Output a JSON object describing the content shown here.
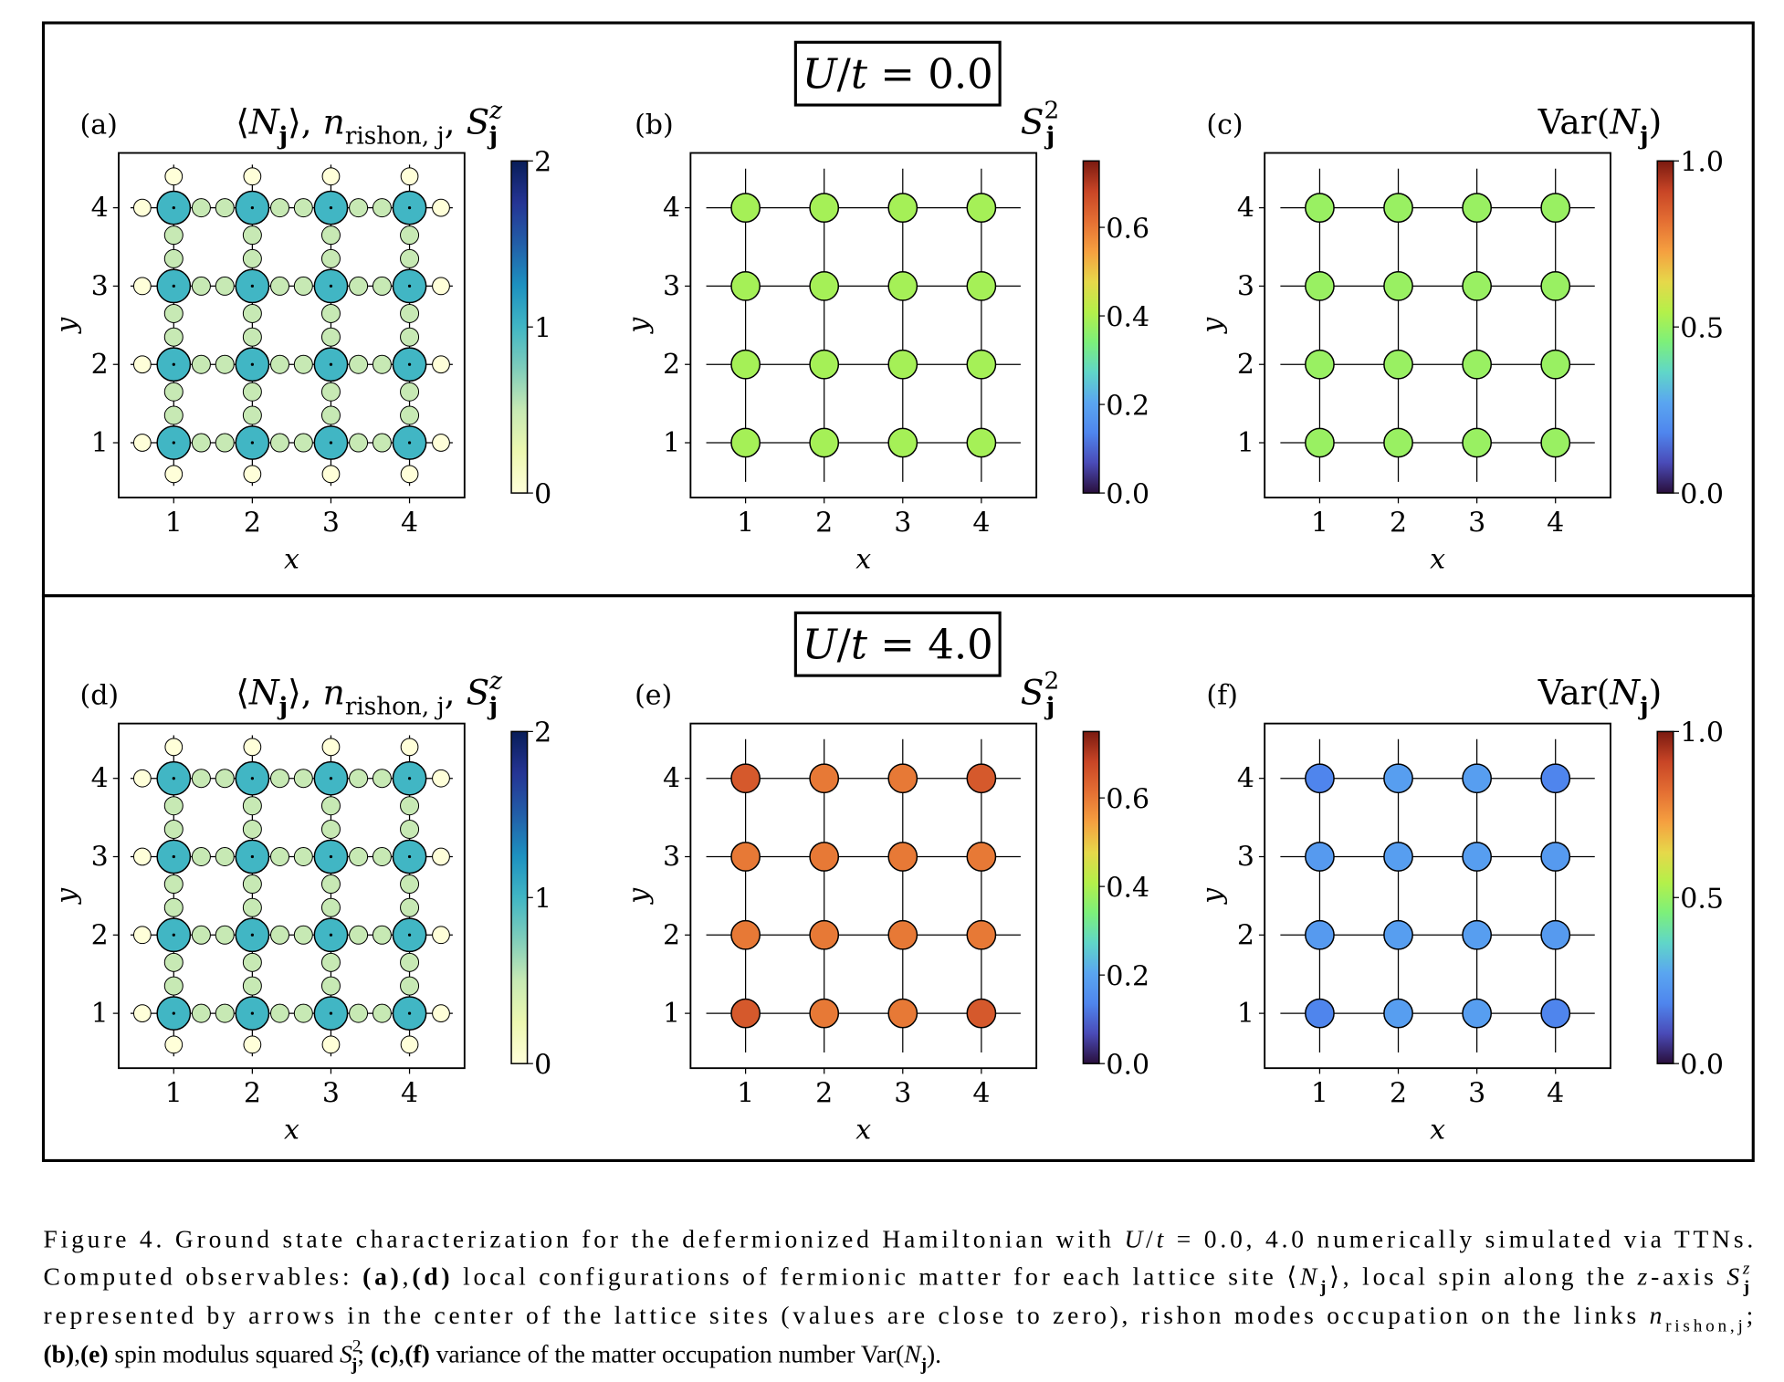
{
  "headers": [
    [
      {
        "t": "U",
        "s": "i"
      },
      {
        "t": "/"
      },
      {
        "t": "t",
        "s": "i"
      },
      {
        "t": " = 0.0"
      }
    ],
    [
      {
        "t": "U",
        "s": "i"
      },
      {
        "t": "/"
      },
      {
        "t": "t",
        "s": "i"
      },
      {
        "t": " = 4.0"
      }
    ]
  ],
  "chart_data": [
    {
      "panel": "(a)",
      "type": "lattice",
      "cmap": "YlGnBu",
      "title": [
        {
          "t": "⟨"
        },
        {
          "t": "N",
          "s": "i"
        },
        {
          "t": "j",
          "s": "subb"
        },
        {
          "t": "⟩,  "
        },
        {
          "t": "n",
          "s": "i"
        },
        {
          "t": "rishon, j",
          "s": "sub"
        },
        {
          "t": ",  "
        },
        {
          "t": "S",
          "s": "i"
        },
        {
          "t": "z",
          "s": "supi"
        },
        {
          "t": "j",
          "s": "subbback"
        }
      ],
      "xlabel": "x",
      "ylabel": "y",
      "xticks": [
        "1",
        "2",
        "3",
        "4"
      ],
      "yticks": [
        "1",
        "2",
        "3",
        "4"
      ],
      "xlim": [
        0.3,
        4.7
      ],
      "ylim": [
        0.3,
        4.7
      ],
      "colorbar": {
        "range": [
          0,
          2
        ],
        "ticks": [
          "0",
          "1",
          "2"
        ],
        "tick_values": [
          0,
          1,
          2
        ]
      },
      "site_N": [
        [
          1,
          1,
          1,
          1
        ],
        [
          1,
          1,
          1,
          1
        ],
        [
          1,
          1,
          1,
          1
        ],
        [
          1,
          1,
          1,
          1
        ]
      ],
      "rishon_inner": 0.5,
      "rishon_boundary": 0.0,
      "site_Sz": "≈0"
    },
    {
      "panel": "(b)",
      "type": "sites",
      "cmap": "turbo",
      "title": [
        {
          "t": "S",
          "s": "i"
        },
        {
          "t": "2",
          "s": "sup"
        },
        {
          "t": "j",
          "s": "subbback"
        }
      ],
      "xlabel": "x",
      "ylabel": "y",
      "xticks": [
        "1",
        "2",
        "3",
        "4"
      ],
      "yticks": [
        "1",
        "2",
        "3",
        "4"
      ],
      "xlim": [
        0.3,
        4.7
      ],
      "ylim": [
        0.3,
        4.7
      ],
      "colorbar": {
        "range": [
          0,
          0.75
        ],
        "ticks": [
          "0.0",
          "0.2",
          "0.4",
          "0.6"
        ],
        "tick_values": [
          0,
          0.2,
          0.4,
          0.6
        ]
      },
      "values": [
        [
          0.39,
          0.39,
          0.39,
          0.39
        ],
        [
          0.39,
          0.39,
          0.39,
          0.39
        ],
        [
          0.39,
          0.39,
          0.39,
          0.39
        ],
        [
          0.39,
          0.39,
          0.39,
          0.39
        ]
      ]
    },
    {
      "panel": "(c)",
      "type": "sites",
      "cmap": "turbo",
      "title": [
        {
          "t": "Var("
        },
        {
          "t": "N",
          "s": "i"
        },
        {
          "t": "j",
          "s": "subb"
        },
        {
          "t": ")"
        }
      ],
      "xlabel": "x",
      "ylabel": "y",
      "xticks": [
        "1",
        "2",
        "3",
        "4"
      ],
      "yticks": [
        "1",
        "2",
        "3",
        "4"
      ],
      "xlim": [
        0.3,
        4.7
      ],
      "ylim": [
        0.3,
        4.7
      ],
      "colorbar": {
        "range": [
          0,
          1
        ],
        "ticks": [
          "0.0",
          "0.5",
          "1.0"
        ],
        "tick_values": [
          0,
          0.5,
          1
        ]
      },
      "values": [
        [
          0.5,
          0.5,
          0.5,
          0.5
        ],
        [
          0.5,
          0.5,
          0.5,
          0.5
        ],
        [
          0.5,
          0.5,
          0.5,
          0.5
        ],
        [
          0.5,
          0.5,
          0.5,
          0.5
        ]
      ]
    },
    {
      "panel": "(d)",
      "type": "lattice",
      "cmap": "YlGnBu",
      "title": [
        {
          "t": "⟨"
        },
        {
          "t": "N",
          "s": "i"
        },
        {
          "t": "j",
          "s": "subb"
        },
        {
          "t": "⟩,  "
        },
        {
          "t": "n",
          "s": "i"
        },
        {
          "t": "rishon, j",
          "s": "sub"
        },
        {
          "t": ",  "
        },
        {
          "t": "S",
          "s": "i"
        },
        {
          "t": "z",
          "s": "supi"
        },
        {
          "t": "j",
          "s": "subbback"
        }
      ],
      "xlabel": "x",
      "ylabel": "y",
      "xticks": [
        "1",
        "2",
        "3",
        "4"
      ],
      "yticks": [
        "1",
        "2",
        "3",
        "4"
      ],
      "xlim": [
        0.3,
        4.7
      ],
      "ylim": [
        0.3,
        4.7
      ],
      "colorbar": {
        "range": [
          0,
          2
        ],
        "ticks": [
          "0",
          "1",
          "2"
        ],
        "tick_values": [
          0,
          1,
          2
        ]
      },
      "site_N": [
        [
          1,
          1,
          1,
          1
        ],
        [
          1,
          1,
          1,
          1
        ],
        [
          1,
          1,
          1,
          1
        ],
        [
          1,
          1,
          1,
          1
        ]
      ],
      "rishon_inner": 0.5,
      "rishon_boundary": 0.0,
      "site_Sz": "≈0"
    },
    {
      "panel": "(e)",
      "type": "sites",
      "cmap": "turbo",
      "title": [
        {
          "t": "S",
          "s": "i"
        },
        {
          "t": "2",
          "s": "sup"
        },
        {
          "t": "j",
          "s": "subbback"
        }
      ],
      "xlabel": "x",
      "ylabel": "y",
      "xticks": [
        "1",
        "2",
        "3",
        "4"
      ],
      "yticks": [
        "1",
        "2",
        "3",
        "4"
      ],
      "xlim": [
        0.3,
        4.7
      ],
      "ylim": [
        0.3,
        4.7
      ],
      "colorbar": {
        "range": [
          0,
          0.75
        ],
        "ticks": [
          "0.0",
          "0.2",
          "0.4",
          "0.6"
        ],
        "tick_values": [
          0,
          0.2,
          0.4,
          0.6
        ]
      },
      "values": [
        [
          0.65,
          0.6,
          0.6,
          0.65
        ],
        [
          0.6,
          0.6,
          0.6,
          0.6
        ],
        [
          0.6,
          0.6,
          0.6,
          0.6
        ],
        [
          0.65,
          0.6,
          0.6,
          0.65
        ]
      ]
    },
    {
      "panel": "(f)",
      "type": "sites",
      "cmap": "turbo",
      "title": [
        {
          "t": "Var("
        },
        {
          "t": "N",
          "s": "i"
        },
        {
          "t": "j",
          "s": "subb"
        },
        {
          "t": ")"
        }
      ],
      "xlabel": "x",
      "ylabel": "y",
      "xticks": [
        "1",
        "2",
        "3",
        "4"
      ],
      "yticks": [
        "1",
        "2",
        "3",
        "4"
      ],
      "xlim": [
        0.3,
        4.7
      ],
      "ylim": [
        0.3,
        4.7
      ],
      "colorbar": {
        "range": [
          0,
          1
        ],
        "ticks": [
          "0.0",
          "0.5",
          "1.0"
        ],
        "tick_values": [
          0,
          0.5,
          1
        ]
      },
      "values": [
        [
          0.18,
          0.25,
          0.25,
          0.18
        ],
        [
          0.24,
          0.25,
          0.25,
          0.24
        ],
        [
          0.24,
          0.25,
          0.25,
          0.24
        ],
        [
          0.18,
          0.25,
          0.25,
          0.18
        ]
      ]
    }
  ],
  "caption": [
    [
      {
        "t": "Figure 4. Ground state characterization for the defermionized Hamiltonian with "
      },
      {
        "t": "U",
        "s": "i"
      },
      {
        "t": "/"
      },
      {
        "t": "t",
        "s": "i"
      },
      {
        "t": " = 0.0, 4.0 numerically simulated via TTNs."
      }
    ],
    [
      {
        "t": "Computed observables: "
      },
      {
        "t": "(a)",
        "s": "b"
      },
      {
        "t": ","
      },
      {
        "t": "(d)",
        "s": "b"
      },
      {
        "t": " local configurations of fermionic matter for each lattice site ⟨"
      },
      {
        "t": "N",
        "s": "i"
      },
      {
        "t": "j",
        "s": "subb"
      },
      {
        "t": "⟩, local spin along the "
      },
      {
        "t": "z",
        "s": "i"
      },
      {
        "t": "-axis "
      },
      {
        "t": "S",
        "s": "i"
      },
      {
        "t": "z",
        "s": "supi"
      },
      {
        "t": "j",
        "s": "subbback"
      }
    ],
    [
      {
        "t": "represented by arrows in the center of the lattice sites (values are close to zero), rishon modes occupation on the links "
      },
      {
        "t": "n",
        "s": "i"
      },
      {
        "t": "rishon,j",
        "s": "sub"
      },
      {
        "t": ";"
      }
    ],
    [
      {
        "t": "(b)",
        "s": "b"
      },
      {
        "t": ","
      },
      {
        "t": "(e)",
        "s": "b"
      },
      {
        "t": " spin modulus squared "
      },
      {
        "t": "S",
        "s": "i"
      },
      {
        "t": "2",
        "s": "sup"
      },
      {
        "t": "j",
        "s": "subbback"
      },
      {
        "t": "; "
      },
      {
        "t": "(c)",
        "s": "b"
      },
      {
        "t": ","
      },
      {
        "t": "(f)",
        "s": "b"
      },
      {
        "t": " variance of the matter occupation number Var("
      },
      {
        "t": "N",
        "s": "i"
      },
      {
        "t": "j",
        "s": "subb"
      },
      {
        "t": ")."
      }
    ]
  ],
  "colors": {
    "site_edge": "#000000",
    "grid_line": "#000000"
  }
}
